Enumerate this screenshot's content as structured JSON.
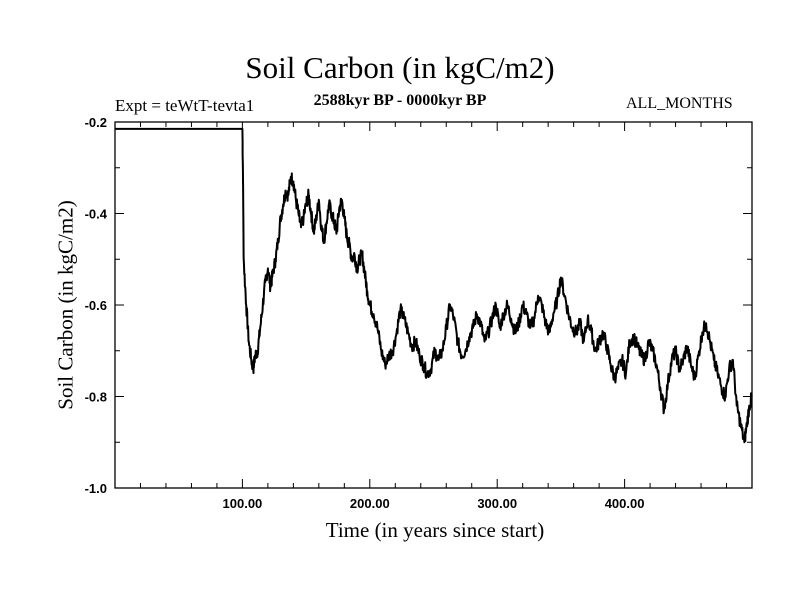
{
  "chart_data": {
    "type": "line",
    "title": "Soil Carbon (in kgC/m2)",
    "subtitle": "2588kyr BP - 0000kyr BP",
    "left_label": "Expt = teWtT-tevta1",
    "right_label": "ALL_MONTHS",
    "xlabel": "Time (in years since start)",
    "ylabel": "Soil Carbon (in kgC/m2)",
    "xlim": [
      0,
      500
    ],
    "ylim": [
      -1.0,
      -0.2
    ],
    "x_ticks": [
      {
        "value": 100,
        "label": "100.00"
      },
      {
        "value": 200,
        "label": "200.00"
      },
      {
        "value": 300,
        "label": "300.00"
      },
      {
        "value": 400,
        "label": "400.00"
      }
    ],
    "y_ticks": [
      {
        "value": -0.2,
        "label": "-0.2"
      },
      {
        "value": -0.4,
        "label": "-0.4"
      },
      {
        "value": -0.6,
        "label": "-0.6"
      },
      {
        "value": -0.8,
        "label": "-0.8"
      },
      {
        "value": -1.0,
        "label": "-1.0"
      }
    ],
    "series": [
      {
        "name": "Soil Carbon",
        "color": "#000000",
        "x": [
          0,
          100,
          100.5,
          101,
          103,
          105,
          107,
          108.5,
          110,
          112,
          114,
          116,
          118,
          120,
          122,
          124,
          126,
          128,
          130,
          132,
          134,
          136,
          138,
          140,
          142,
          144,
          146,
          148,
          150,
          152,
          154,
          156,
          158,
          160,
          162,
          164,
          166,
          168,
          170,
          172,
          174,
          176,
          178,
          180,
          182,
          184,
          186,
          188,
          190,
          192,
          194,
          196,
          198,
          200,
          203,
          206,
          209,
          212,
          215,
          218,
          221,
          224,
          227,
          230,
          233,
          236,
          239,
          242,
          245,
          248,
          251,
          254,
          257,
          260,
          263,
          266,
          269,
          272,
          275,
          278,
          281,
          284,
          287,
          290,
          293,
          296,
          299,
          302,
          305,
          308,
          311,
          314,
          317,
          320,
          323,
          326,
          329,
          332,
          335,
          338,
          341,
          344,
          347,
          350,
          353,
          356,
          359,
          362,
          365,
          368,
          371,
          374,
          377,
          380,
          383,
          386,
          389,
          392,
          395,
          398,
          401,
          404,
          407,
          410,
          413,
          416,
          419,
          422,
          425,
          428,
          431,
          434,
          437,
          440,
          443,
          446,
          449,
          452,
          455,
          458,
          461,
          464,
          467,
          470,
          473,
          476,
          479,
          482,
          485,
          488,
          491,
          494,
          496,
          498,
          500
        ],
        "y": [
          -0.215,
          -0.215,
          -0.33,
          -0.5,
          -0.6,
          -0.68,
          -0.72,
          -0.74,
          -0.71,
          -0.7,
          -0.65,
          -0.6,
          -0.55,
          -0.52,
          -0.56,
          -0.53,
          -0.5,
          -0.46,
          -0.41,
          -0.38,
          -0.35,
          -0.36,
          -0.32,
          -0.33,
          -0.37,
          -0.4,
          -0.43,
          -0.41,
          -0.38,
          -0.36,
          -0.4,
          -0.44,
          -0.41,
          -0.37,
          -0.43,
          -0.46,
          -0.42,
          -0.38,
          -0.4,
          -0.42,
          -0.44,
          -0.39,
          -0.37,
          -0.41,
          -0.45,
          -0.47,
          -0.5,
          -0.49,
          -0.52,
          -0.5,
          -0.49,
          -0.53,
          -0.57,
          -0.6,
          -0.62,
          -0.65,
          -0.7,
          -0.73,
          -0.71,
          -0.7,
          -0.66,
          -0.61,
          -0.63,
          -0.66,
          -0.69,
          -0.68,
          -0.71,
          -0.73,
          -0.75,
          -0.74,
          -0.7,
          -0.72,
          -0.7,
          -0.65,
          -0.6,
          -0.63,
          -0.68,
          -0.71,
          -0.7,
          -0.67,
          -0.65,
          -0.62,
          -0.64,
          -0.68,
          -0.66,
          -0.63,
          -0.6,
          -0.65,
          -0.62,
          -0.6,
          -0.63,
          -0.66,
          -0.64,
          -0.6,
          -0.62,
          -0.65,
          -0.63,
          -0.58,
          -0.6,
          -0.64,
          -0.66,
          -0.62,
          -0.59,
          -0.54,
          -0.58,
          -0.62,
          -0.65,
          -0.66,
          -0.64,
          -0.68,
          -0.63,
          -0.66,
          -0.7,
          -0.68,
          -0.66,
          -0.69,
          -0.73,
          -0.76,
          -0.74,
          -0.72,
          -0.75,
          -0.68,
          -0.67,
          -0.69,
          -0.71,
          -0.72,
          -0.68,
          -0.7,
          -0.73,
          -0.78,
          -0.83,
          -0.77,
          -0.72,
          -0.7,
          -0.74,
          -0.72,
          -0.69,
          -0.73,
          -0.76,
          -0.71,
          -0.66,
          -0.64,
          -0.68,
          -0.72,
          -0.75,
          -0.78,
          -0.8,
          -0.74,
          -0.72,
          -0.82,
          -0.86,
          -0.9,
          -0.86,
          -0.82,
          -0.8
        ]
      }
    ]
  }
}
